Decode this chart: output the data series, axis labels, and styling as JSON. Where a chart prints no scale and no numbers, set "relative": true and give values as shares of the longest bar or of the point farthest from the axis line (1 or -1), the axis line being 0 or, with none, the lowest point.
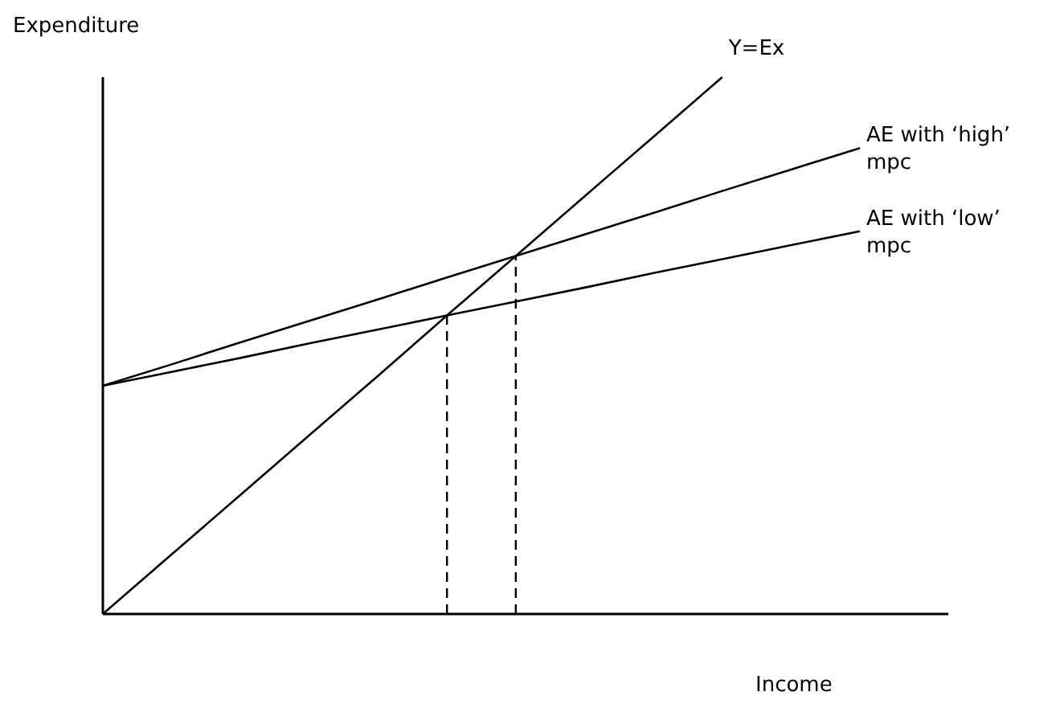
{
  "chart_data": {
    "type": "line",
    "relative": true,
    "xlabel": "Income",
    "ylabel": "Expenditure",
    "categories": [
      null,
      null,
      null,
      null,
      null,
      null,
      null,
      null,
      null,
      null,
      null,
      null
    ],
    "series": [
      {
        "name": "Y=Ex",
        "color": "#000000",
        "values": [
          0,
          0.111,
          0.222,
          0.333,
          0.444,
          0.556,
          0.667,
          0.778,
          0.889,
          1,
          null,
          null
        ]
      },
      {
        "name": "AE with ‘high’ mpc",
        "color": "#000000",
        "values": [
          0.425,
          0.465,
          0.506,
          0.546,
          0.586,
          0.627,
          0.667,
          0.707,
          0.747,
          0.788,
          0.828,
          0.868
        ]
      },
      {
        "name": "AE with ‘low’ mpc",
        "color": "#000000",
        "values": [
          0.425,
          0.451,
          0.477,
          0.504,
          0.53,
          0.556,
          0.582,
          0.608,
          0.635,
          0.661,
          0.687,
          0.713
        ]
      }
    ]
  }
}
